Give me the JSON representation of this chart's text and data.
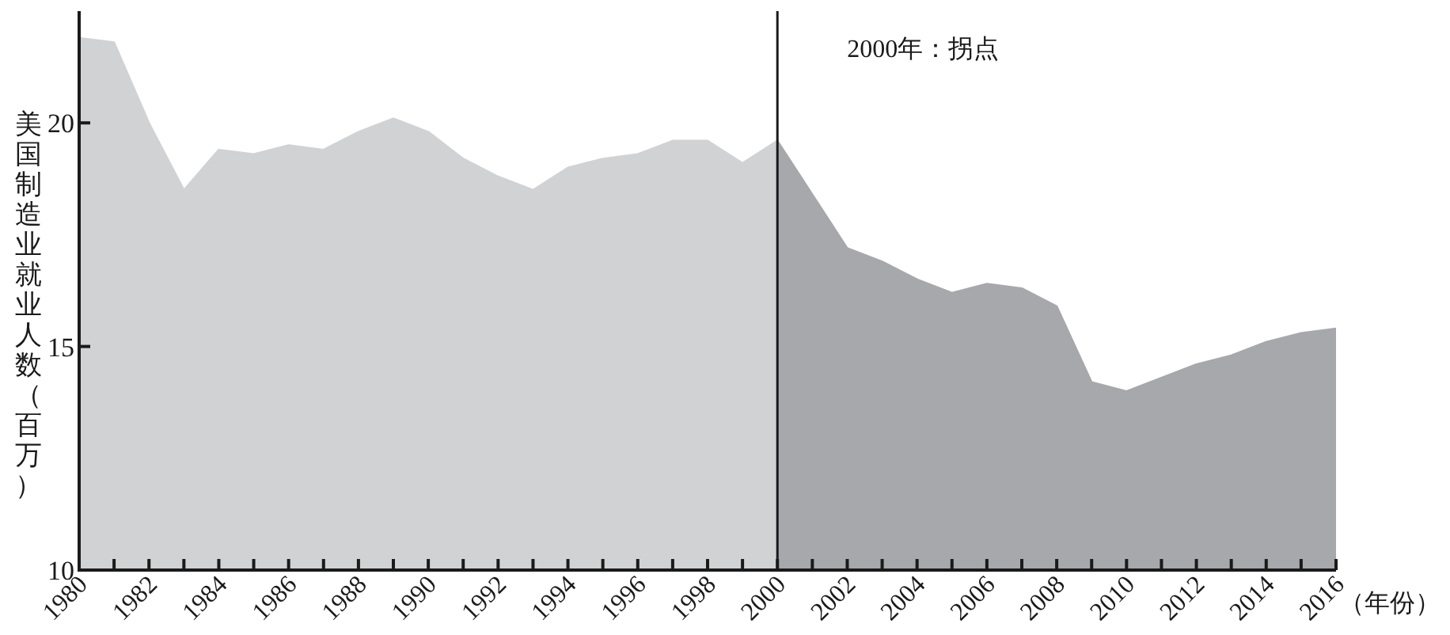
{
  "chart_data": {
    "type": "area",
    "ylabel": "美国制造业就业人数（百万）",
    "xlabel": "（年份）",
    "series": [
      {
        "color": "#d1d2d4",
        "x": [
          1980,
          1981,
          1982,
          1983,
          1984,
          1985,
          1986,
          1987,
          1988,
          1989,
          1990,
          1991,
          1992,
          1993,
          1994,
          1995,
          1996,
          1997,
          1998,
          1999,
          2000
        ],
        "values": [
          21.9,
          21.8,
          20.0,
          18.5,
          19.4,
          19.3,
          19.5,
          19.4,
          19.8,
          20.1,
          19.8,
          19.2,
          18.8,
          18.5,
          19.0,
          19.2,
          19.3,
          19.6,
          19.6,
          19.1,
          19.6
        ]
      },
      {
        "color": "#a7a8ab",
        "x": [
          2000,
          2001,
          2002,
          2003,
          2004,
          2005,
          2006,
          2007,
          2008,
          2009,
          2010,
          2011,
          2012,
          2013,
          2014,
          2015,
          2016
        ],
        "values": [
          19.6,
          18.4,
          17.2,
          16.9,
          16.5,
          16.2,
          16.4,
          16.3,
          15.9,
          14.2,
          14.0,
          14.3,
          14.6,
          14.8,
          15.1,
          15.3,
          15.4
        ]
      }
    ],
    "xlim": [
      1980,
      2016
    ],
    "ylim": [
      10,
      22.5
    ],
    "xticks": [
      1980,
      {
        "value": 1981,
        "label": null
      },
      1982,
      {
        "value": 1983,
        "label": null
      },
      1984,
      {
        "value": 1985,
        "label": null
      },
      1986,
      {
        "value": 1987,
        "label": null
      },
      1988,
      {
        "value": 1989,
        "label": null
      },
      1990,
      {
        "value": 1991,
        "label": null
      },
      1992,
      {
        "value": 1993,
        "label": null
      },
      1994,
      {
        "value": 1995,
        "label": null
      },
      1996,
      {
        "value": 1997,
        "label": null
      },
      1998,
      {
        "value": 1999,
        "label": null
      },
      2000,
      {
        "value": 2001,
        "label": null
      },
      2002,
      {
        "value": 2003,
        "label": null
      },
      2004,
      {
        "value": 2005,
        "label": null
      },
      2006,
      {
        "value": 2007,
        "label": null
      },
      2008,
      {
        "value": 2009,
        "label": null
      },
      2010,
      {
        "value": 2011,
        "label": null
      },
      2012,
      {
        "value": 2013,
        "label": null
      },
      2014,
      {
        "value": 2015,
        "label": null
      },
      2016
    ],
    "yticks": [
      10,
      15,
      20
    ],
    "ref_lines": [
      {
        "axis": "x",
        "value": 2000,
        "label": "2000年：拐点",
        "color": "#1a1a1a"
      }
    ],
    "grid": false
  }
}
